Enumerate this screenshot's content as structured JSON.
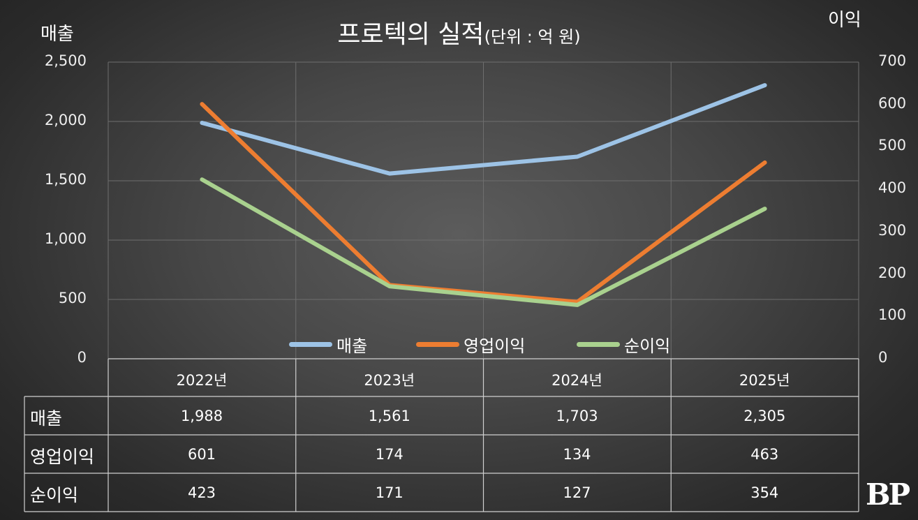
{
  "header": {
    "title": "프로텍의 실적",
    "unit": "(단위 : 억 원)",
    "left_axis_label": "매출",
    "right_axis_label": "이익"
  },
  "logo": "BP",
  "chart_data": {
    "type": "line",
    "title": "프로텍의 실적(단위 : 억 원)",
    "categories": [
      "2022년",
      "2023년",
      "2024년",
      "2025년"
    ],
    "series": [
      {
        "name": "매출",
        "values": [
          1988,
          1561,
          1703,
          2305
        ],
        "axis": "left",
        "color": "#9dc3e6",
        "labels": [
          "1,988",
          "1,561",
          "1,703",
          "2,305"
        ]
      },
      {
        "name": "영업이익",
        "values": [
          601,
          174,
          134,
          463
        ],
        "axis": "right",
        "color": "#ed7d31",
        "labels": [
          "601",
          "174",
          "134",
          "463"
        ]
      },
      {
        "name": "순이익",
        "values": [
          423,
          171,
          127,
          354
        ],
        "axis": "right",
        "color": "#a9d18e",
        "labels": [
          "423",
          "171",
          "127",
          "354"
        ]
      }
    ],
    "left_axis": {
      "label": "매출",
      "ylim": [
        0,
        2500
      ],
      "ticks": [
        "0",
        "500",
        "1,000",
        "1,500",
        "2,000",
        "2,500"
      ]
    },
    "right_axis": {
      "label": "이익",
      "ylim": [
        0,
        700
      ],
      "ticks": [
        "0",
        "100",
        "200",
        "300",
        "400",
        "500",
        "600",
        "700"
      ]
    },
    "grid": true,
    "legend": "bottom-inside",
    "data_table": true
  }
}
